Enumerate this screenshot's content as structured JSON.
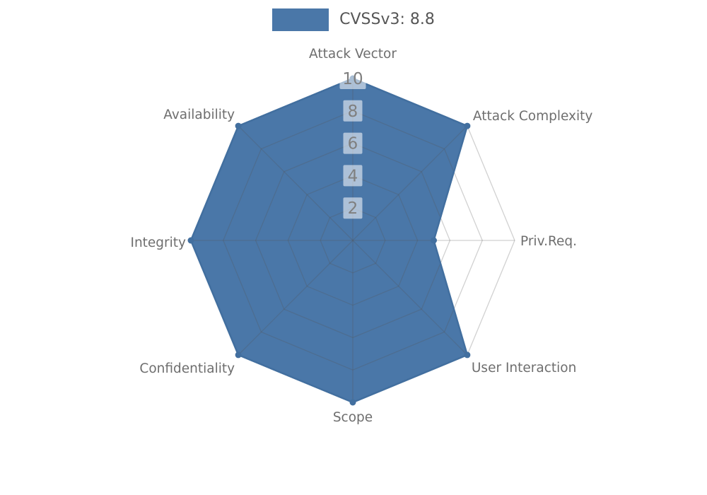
{
  "legend": {
    "label": "CVSSv3: 8.8",
    "swatch_color": "#4a77a8"
  },
  "chart_data": {
    "type": "radar",
    "title": "CVSSv3: 8.8",
    "categories": [
      "Attack Vector",
      "Attack Complexity",
      "Priv.Req.",
      "User Interaction",
      "Scope",
      "Confidentiality",
      "Integrity",
      "Availability"
    ],
    "series": [
      {
        "name": "CVSSv3: 8.8",
        "values": [
          10,
          10,
          5,
          10,
          10,
          10,
          10,
          10
        ]
      }
    ],
    "rmax": 10,
    "ticks": [
      2,
      4,
      6,
      8,
      10
    ],
    "start_angle_deg": 90,
    "direction": "clockwise",
    "grid": "on",
    "legend_position": "top-center",
    "colors": {
      "fill": "#4a77a8",
      "stroke": "#426f9f",
      "marker": "#426f9f",
      "grid_line": "#555555",
      "tick_text": "#7f7f7f",
      "tick_box": "#ffffff",
      "category_text": "#6e6e6e",
      "legend_text": "#565656"
    }
  }
}
